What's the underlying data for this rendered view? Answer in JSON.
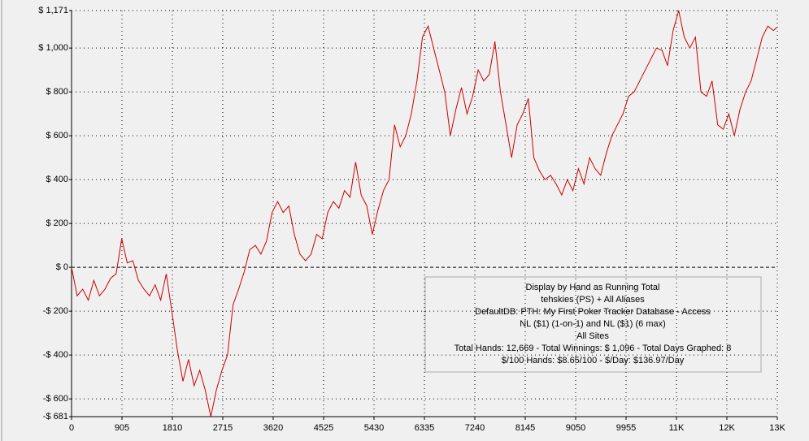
{
  "chart_data": {
    "type": "line",
    "x": [
      0,
      100,
      200,
      300,
      400,
      500,
      600,
      700,
      800,
      900,
      1000,
      1100,
      1200,
      1300,
      1400,
      1500,
      1600,
      1700,
      1800,
      1900,
      2000,
      2100,
      2200,
      2300,
      2400,
      2500,
      2600,
      2700,
      2800,
      2900,
      3000,
      3100,
      3200,
      3300,
      3400,
      3500,
      3600,
      3700,
      3800,
      3900,
      4000,
      4100,
      4200,
      4300,
      4400,
      4500,
      4600,
      4700,
      4800,
      4900,
      5000,
      5100,
      5200,
      5300,
      5400,
      5500,
      5600,
      5700,
      5800,
      5900,
      6000,
      6100,
      6200,
      6300,
      6400,
      6500,
      6600,
      6700,
      6800,
      6900,
      7000,
      7100,
      7200,
      7300,
      7400,
      7500,
      7600,
      7700,
      7800,
      7900,
      8000,
      8100,
      8200,
      8300,
      8400,
      8500,
      8600,
      8700,
      8800,
      8900,
      9000,
      9100,
      9200,
      9300,
      9400,
      9500,
      9600,
      9700,
      9800,
      9900,
      10000,
      10100,
      10200,
      10300,
      10400,
      10500,
      10600,
      10700,
      10800,
      10900,
      11000,
      11100,
      11200,
      11300,
      11400,
      11500,
      11600,
      11700,
      11800,
      11900,
      12000,
      12100,
      12200,
      12300,
      12400,
      12500,
      12600,
      12669
    ],
    "series": [
      {
        "name": "Running Total",
        "color": "#cc0000",
        "values": [
          0,
          -130,
          -100,
          -150,
          -60,
          -130,
          -100,
          -50,
          -30,
          130,
          20,
          30,
          -60,
          -100,
          -130,
          -80,
          -150,
          -30,
          -200,
          -380,
          -520,
          -420,
          -540,
          -470,
          -560,
          -681,
          -560,
          -470,
          -400,
          -170,
          -100,
          -20,
          80,
          100,
          60,
          120,
          250,
          300,
          250,
          280,
          150,
          60,
          30,
          60,
          150,
          130,
          250,
          300,
          270,
          350,
          320,
          480,
          330,
          280,
          150,
          260,
          350,
          400,
          650,
          550,
          600,
          700,
          850,
          1050,
          1100,
          1000,
          900,
          800,
          600,
          720,
          820,
          700,
          780,
          900,
          850,
          880,
          1030,
          800,
          650,
          500,
          650,
          700,
          770,
          500,
          440,
          400,
          420,
          380,
          330,
          400,
          350,
          450,
          380,
          500,
          450,
          420,
          520,
          600,
          650,
          700,
          780,
          800,
          850,
          900,
          950,
          1000,
          990,
          920,
          1080,
          1171,
          1050,
          1000,
          1050,
          800,
          780,
          850,
          650,
          630,
          700,
          600,
          720,
          800,
          850,
          950,
          1050,
          1100,
          1080,
          1096
        ]
      }
    ],
    "xlim": [
      0,
      12670
    ],
    "xticks": [
      0,
      905,
      1810,
      2715,
      3620,
      4525,
      5430,
      6335,
      7240,
      8145,
      9050,
      9955,
      {
        "value": 10860,
        "label": "11K"
      },
      {
        "value": 11765,
        "label": "12K"
      },
      {
        "value": 12670,
        "label": "13K"
      }
    ],
    "ylim": [
      -681,
      1171
    ],
    "yticks": [
      {
        "value": -681,
        "label": "-$ 681"
      },
      {
        "value": -600,
        "label": "-$ 600"
      },
      {
        "value": -400,
        "label": "-$ 400"
      },
      {
        "value": -200,
        "label": "-$ 200"
      },
      {
        "value": 0,
        "label": "$ 0"
      },
      {
        "value": 200,
        "label": "$ 200"
      },
      {
        "value": 400,
        "label": "$ 400"
      },
      {
        "value": 600,
        "label": "$ 600"
      },
      {
        "value": 800,
        "label": "$ 800"
      },
      {
        "value": 1000,
        "label": "$ 1,000"
      },
      {
        "value": 1171,
        "label": "$ 1,171"
      }
    ],
    "grid": true,
    "annotations": [
      "Display by Hand as Running Total",
      "tehskies (PS) + All Aliases",
      "DefaultDB: PTH: My First Poker Tracker Database - Access",
      "NL ($1) (1-on-1) and NL ($1) (6 max)",
      "All Sites",
      "Total Hands: 12,669 - Total Winnings: $ 1,096 - Total Days Graphed: 8",
      "$/100 Hands: $8.65/100 - $/Day: $136.97/Day"
    ]
  }
}
